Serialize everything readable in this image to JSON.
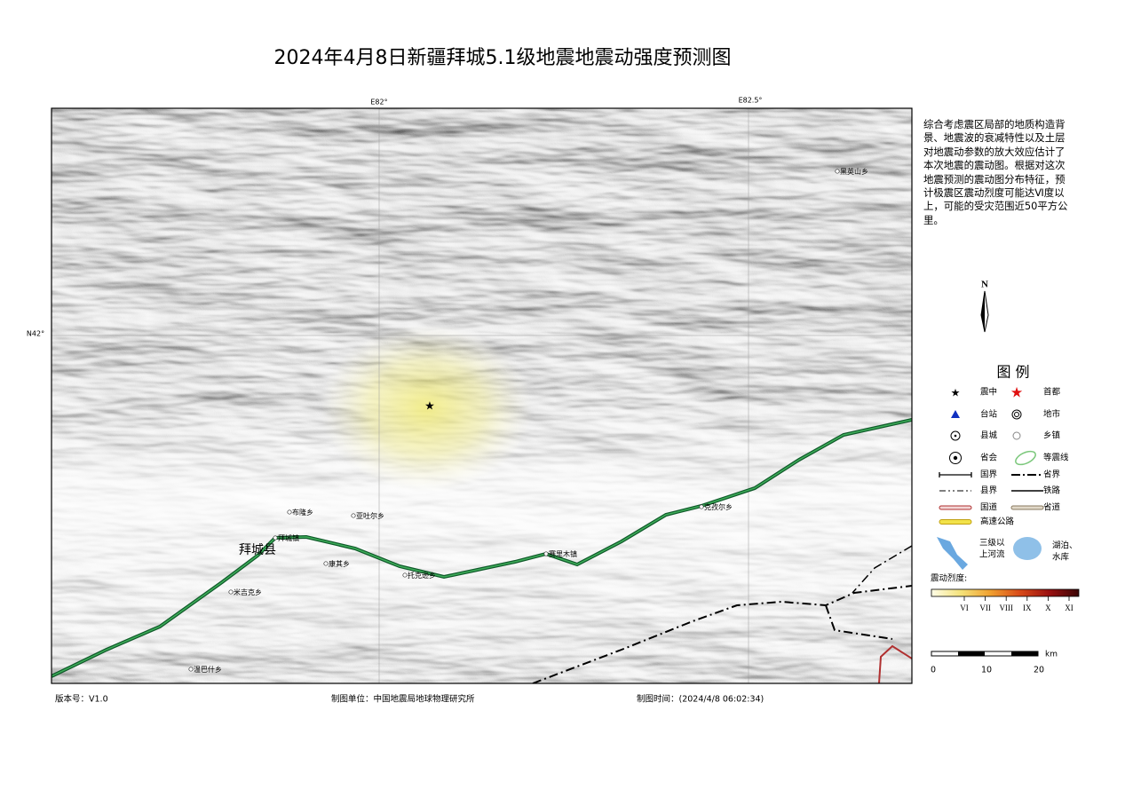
{
  "title": "2024年4月8日新疆拜城5.1级地震地震动强度预测图",
  "map": {
    "grid_labels": [
      "E82°",
      "E82.5°",
      "N42°"
    ],
    "county": "拜城县",
    "places": [
      "黑英山乡",
      "布隆乡",
      "亚吐尔乡",
      "拜城镇",
      "康其乡",
      "托克逊乡",
      "赛里木镇",
      "克孜尔乡",
      "米吉克乡",
      "温巴什乡"
    ]
  },
  "description": "综合考虑震区局部的地质构造背景、地震波的衰减特性以及土层对地震动参数的放大效应估计了本次地震的震动图。根据对这次地震预测的震动图分布特征，预计极震区震动烈度可能达Ⅵ度以上，可能的受灾范围近50平方公里。",
  "north": "N",
  "legend": {
    "title": "图 例",
    "items": [
      "震中",
      "首都",
      "台站",
      "地市",
      "县城",
      "乡镇",
      "省会",
      "等震线",
      "国界",
      "省界",
      "县界",
      "铁路",
      "国道",
      "省道",
      "高速公路"
    ],
    "river": [
      "三级以",
      "上河流"
    ],
    "lake": [
      "湖泊、",
      "水库"
    ]
  },
  "intensity": {
    "label": "震动烈度:",
    "levels": [
      "VI",
      "VII",
      "VIII",
      "IX",
      "X",
      "XI"
    ]
  },
  "scale": {
    "ticks": [
      "0",
      "10",
      "20"
    ],
    "unit": "km"
  },
  "footer": {
    "version": "版本号：V1.0",
    "unit": "制图单位：中国地震局地球物理研究所",
    "time": "制图时间：(2024/4/8 06:02:34)"
  }
}
